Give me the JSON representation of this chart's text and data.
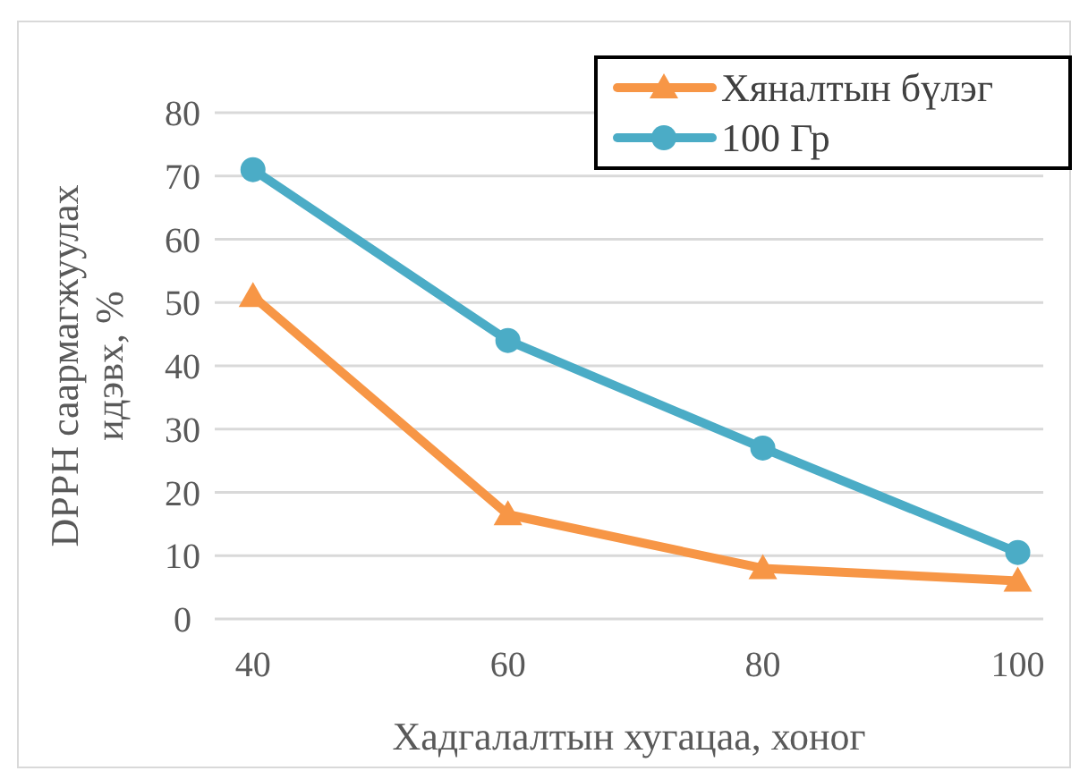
{
  "chart_data": {
    "type": "line",
    "xlabel": "Хадгалалтын хугацаа, хоног",
    "ylabel": "DPPH саармагжуулах идэвх, %",
    "x": [
      40,
      60,
      80,
      100
    ],
    "xlim": [
      37,
      102
    ],
    "xticks": [
      40,
      60,
      80,
      100
    ],
    "ylim": [
      0,
      80
    ],
    "yticks": [
      0,
      10,
      20,
      30,
      40,
      50,
      60,
      70,
      80
    ],
    "grid": "y",
    "legend": "top right",
    "tick_labels": "xy",
    "series": [
      {
        "name": "Хяналтын бүлэг",
        "color": "#f79646",
        "values": [
          51,
          16.5,
          8,
          6
        ],
        "marker": "triangle"
      },
      {
        "name": "100 Гр",
        "color": "#4bacc6",
        "values": [
          71,
          44,
          27,
          10.5
        ],
        "marker": "circle"
      }
    ]
  }
}
